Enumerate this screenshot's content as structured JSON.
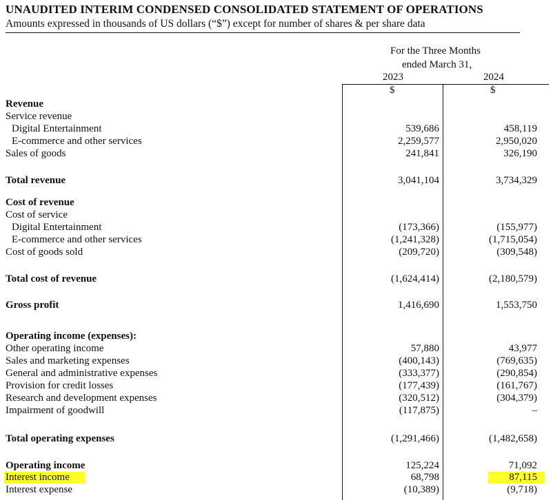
{
  "header": {
    "title": "UNAUDITED INTERIM CONDENSED CONSOLIDATED STATEMENT OF OPERATIONS",
    "subtitle": "Amounts expressed in thousands  of US dollars (“$”) except for number of shares & per share data"
  },
  "columns": {
    "period_line1": "For the Three Months",
    "period_line2": "ended March 31,",
    "year1": "2023",
    "year2": "2024",
    "currency1": "$",
    "currency2": "$"
  },
  "rows": {
    "revenue_heading": "Revenue",
    "service_revenue": "Service revenue",
    "digital_ent": {
      "label": "Digital Entertainment",
      "y2023": "539,686",
      "y2024": "458,119"
    },
    "ecommerce": {
      "label": "E-commerce and other services",
      "y2023": "2,259,577",
      "y2024": "2,950,020"
    },
    "sales_goods": {
      "label": "Sales of goods",
      "y2023": "241,841",
      "y2024": "326,190"
    },
    "total_revenue": {
      "label": "Total revenue",
      "y2023": "3,041,104",
      "y2024": "3,734,329"
    },
    "cost_heading": "Cost of revenue",
    "cost_service": "Cost of service",
    "cost_digital": {
      "label": "Digital Entertainment",
      "y2023": "(173,366)",
      "y2024": "(155,977)"
    },
    "cost_ecommerce": {
      "label": "E-commerce and other services",
      "y2023": "(1,241,328)",
      "y2024": "(1,715,054)"
    },
    "cost_goods": {
      "label": "Cost of goods sold",
      "y2023": "(209,720)",
      "y2024": "(309,548)"
    },
    "total_cost": {
      "label": "Total cost of revenue",
      "y2023": "(1,624,414)",
      "y2024": "(2,180,579)"
    },
    "gross_profit": {
      "label": "Gross profit",
      "y2023": "1,416,690",
      "y2024": "1,553,750"
    },
    "opex_heading": "Operating income (expenses):",
    "other_op_income": {
      "label": "Other operating income",
      "y2023": "57,880",
      "y2024": "43,977"
    },
    "sales_marketing": {
      "label": "Sales and marketing expenses",
      "y2023": "(400,143)",
      "y2024": "(769,635)"
    },
    "gen_admin": {
      "label": "General and administrative expenses",
      "y2023": "(333,377)",
      "y2024": "(290,854)"
    },
    "credit_losses": {
      "label": "Provision for credit losses",
      "y2023": "(177,439)",
      "y2024": "(161,767)"
    },
    "research_dev": {
      "label": "Research and development expenses",
      "y2023": "(320,512)",
      "y2024": "(304,379)"
    },
    "impairment": {
      "label": "Impairment of goodwill",
      "y2023": "(117,875)",
      "y2024": "–"
    },
    "total_opex": {
      "label": "Total operating expenses",
      "y2023": "(1,291,466)",
      "y2024": "(1,482,658)"
    },
    "operating_income": {
      "label": "Operating income",
      "y2023": "125,224",
      "y2024": "71,092"
    },
    "interest_income": {
      "label": "Interest income",
      "y2023": "68,798",
      "y2024": "87,115"
    },
    "interest_expense": {
      "label": "Interest expense",
      "y2023": "(10,389)",
      "y2024": "(9,718)"
    }
  },
  "highlight_color": "#ffff2a"
}
